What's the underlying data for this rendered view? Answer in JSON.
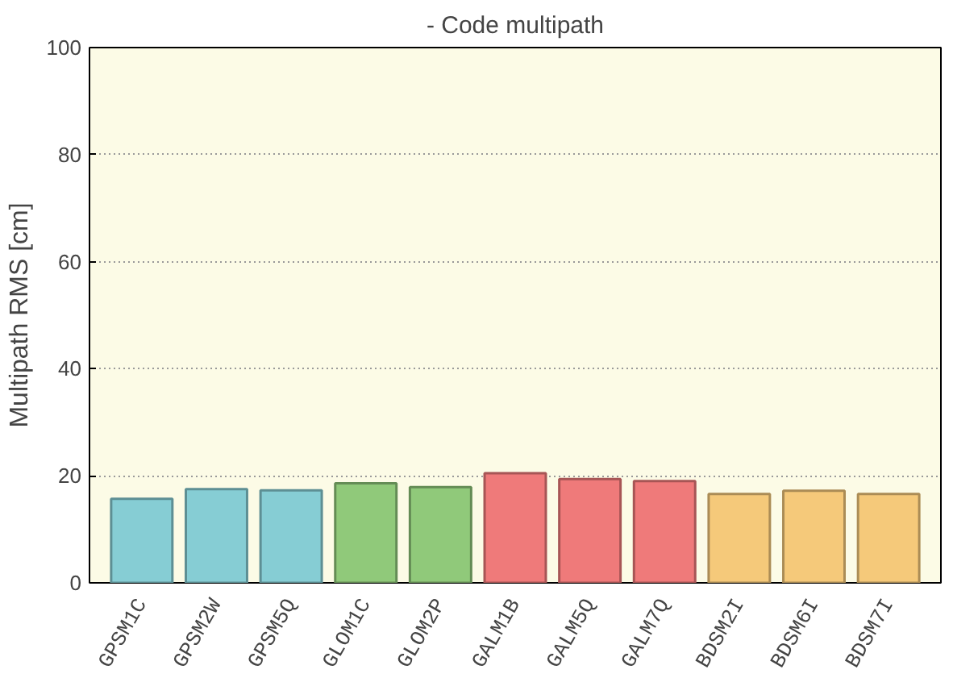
{
  "chart_data": {
    "type": "bar",
    "title": "- Code multipath",
    "ylabel": "Multipath RMS [cm]",
    "categories": [
      "GPSM1C",
      "GPSM2W",
      "GPSM5Q",
      "GLOM1C",
      "GLOM2P",
      "GALM1B",
      "GALM5Q",
      "GALM7Q",
      "BDSM2I",
      "BDSM6I",
      "BDSM7I"
    ],
    "values": [
      15.7,
      17.5,
      17.3,
      18.6,
      17.9,
      20.5,
      19.4,
      19.0,
      16.6,
      17.2,
      16.6
    ],
    "colors": [
      "#86cdd4",
      "#86cdd4",
      "#86cdd4",
      "#90c97a",
      "#90c97a",
      "#ef7a7a",
      "#ef7a7a",
      "#ef7a7a",
      "#f5c97a",
      "#f5c97a",
      "#f5c97a"
    ],
    "ylim": [
      0,
      100
    ],
    "yticks": [
      0,
      20,
      40,
      60,
      80,
      100
    ],
    "grid": "y"
  }
}
